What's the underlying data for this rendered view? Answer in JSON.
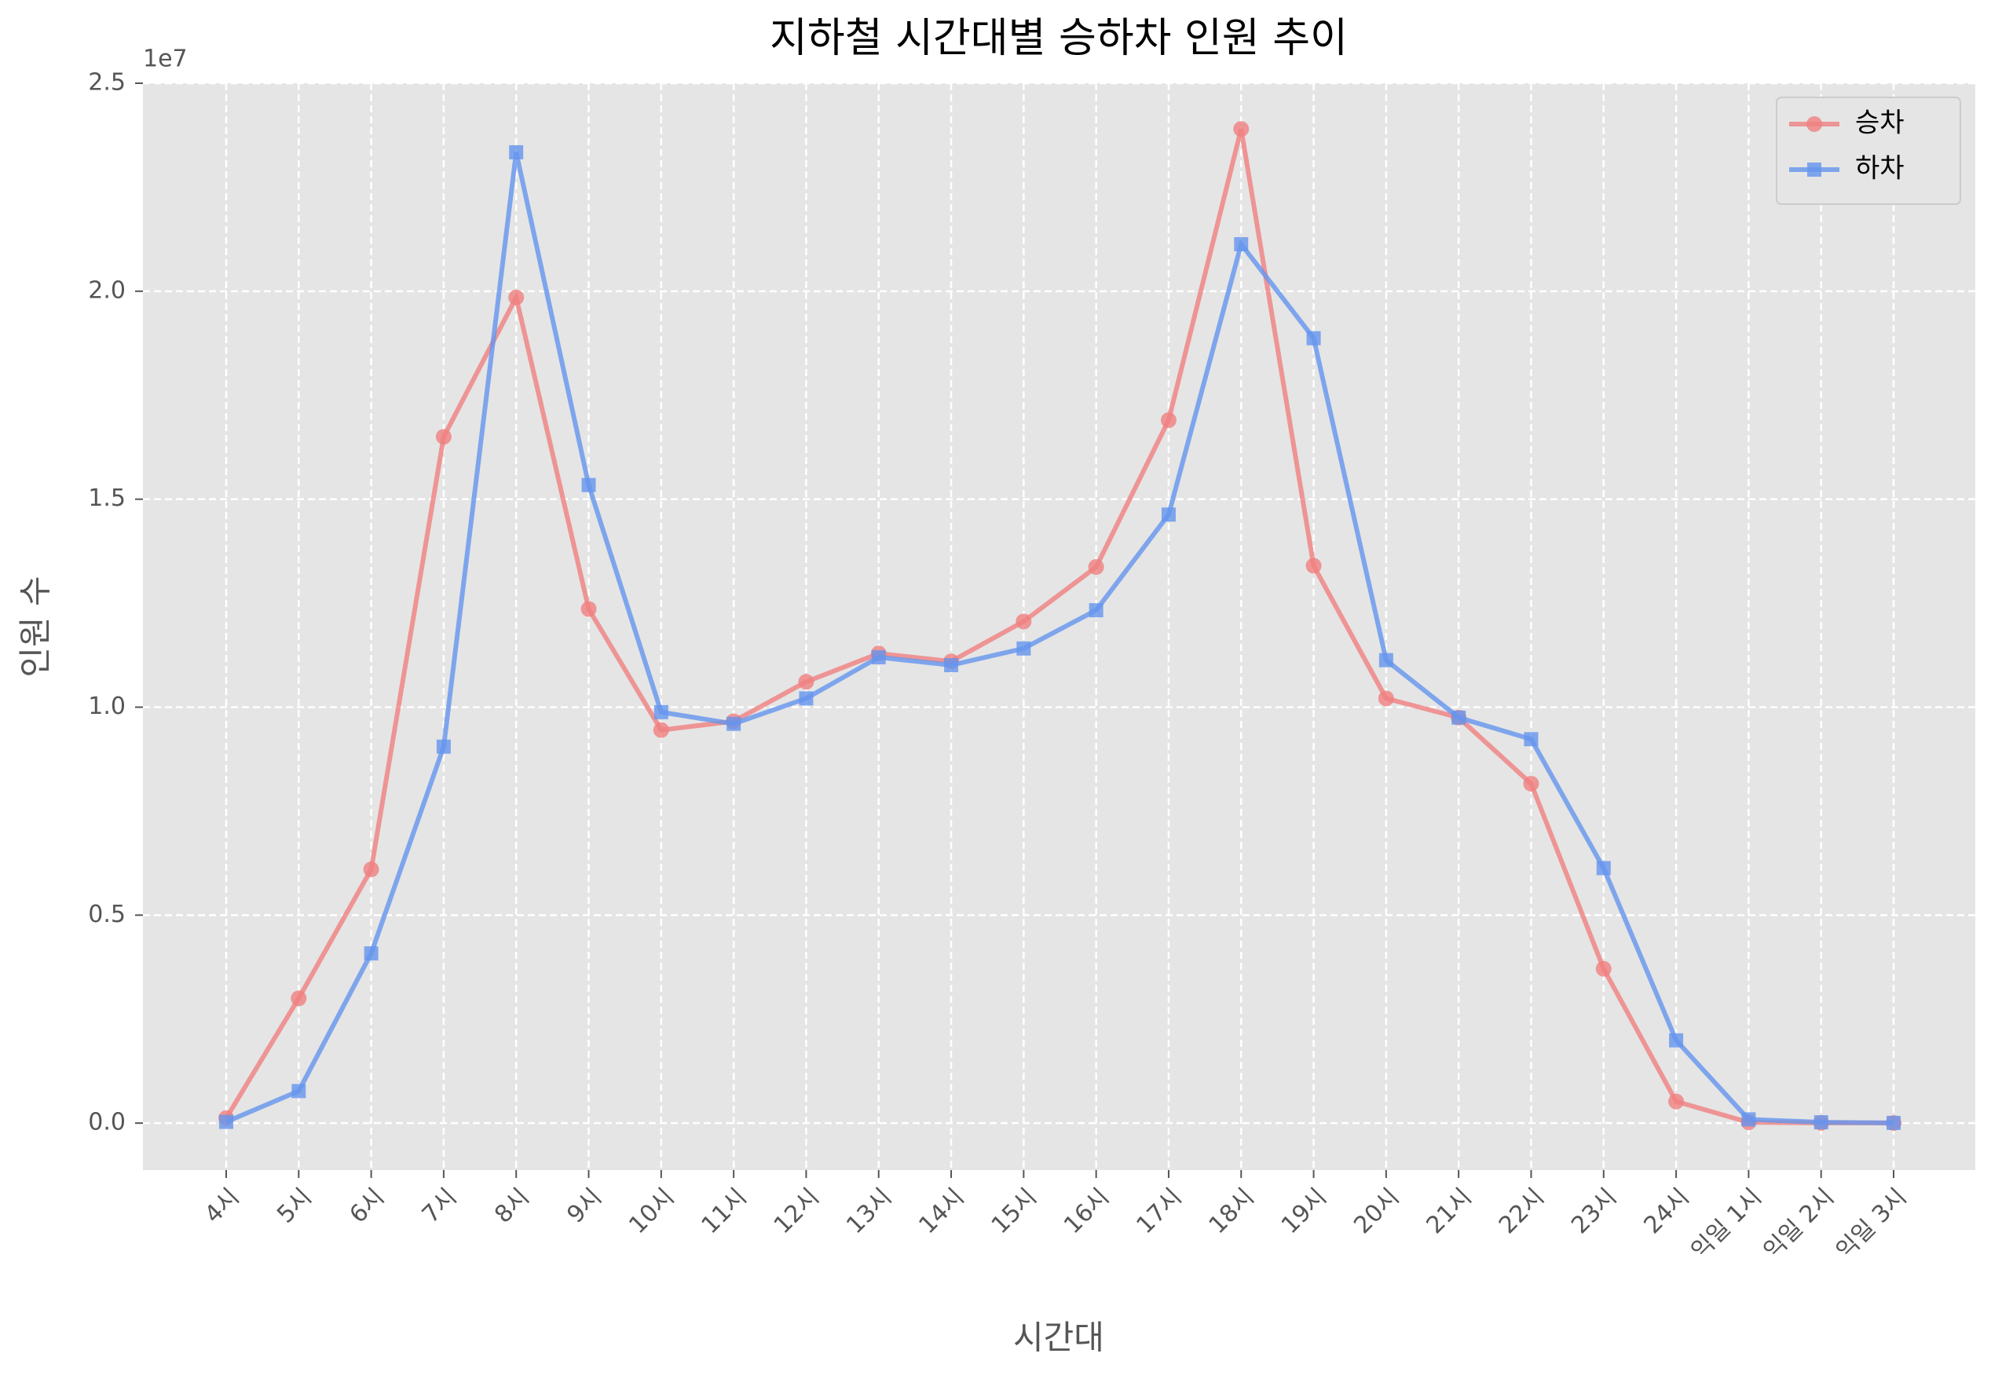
{
  "chart_data": {
    "type": "line",
    "title": "지하철 시간대별 승하차 인원 추이",
    "x_label": "시간대",
    "y_label": "인원 수",
    "y_offset_label": "1e7",
    "categories": [
      "4시",
      "5시",
      "6시",
      "7시",
      "8시",
      "9시",
      "10시",
      "11시",
      "12시",
      "13시",
      "14시",
      "15시",
      "16시",
      "17시",
      "18시",
      "19시",
      "20시",
      "21시",
      "22시",
      "23시",
      "24시",
      "익일 1시",
      "익일 2시",
      "익일 3시"
    ],
    "series": [
      {
        "name": "승차",
        "color": "#f08080",
        "marker": "circle",
        "values": [
          120000,
          3000000,
          6100000,
          16500000,
          19850000,
          12360000,
          9450000,
          9660000,
          10610000,
          11290000,
          11100000,
          12060000,
          13370000,
          16900000,
          23900000,
          13400000,
          10210000,
          9750000,
          8160000,
          3710000,
          520000,
          20000,
          5000,
          2000
        ]
      },
      {
        "name": "하차",
        "color": "#6495ed",
        "marker": "square",
        "values": [
          30000,
          770000,
          4080000,
          9050000,
          23340000,
          15340000,
          9880000,
          9600000,
          10210000,
          11200000,
          11010000,
          11410000,
          12330000,
          14630000,
          21130000,
          18870000,
          11130000,
          9750000,
          9230000,
          6130000,
          1990000,
          90000,
          20000,
          5000
        ]
      }
    ],
    "ylim": [
      -1130000,
      25000000
    ],
    "yticks": [
      {
        "value": 0,
        "label": "0.0"
      },
      {
        "value": 5000000,
        "label": "0.5"
      },
      {
        "value": 10000000,
        "label": "1.0"
      },
      {
        "value": 15000000,
        "label": "1.5"
      },
      {
        "value": 20000000,
        "label": "2.0"
      },
      {
        "value": 25000000,
        "label": "2.5"
      }
    ],
    "grid": true,
    "legend": "upper right"
  }
}
